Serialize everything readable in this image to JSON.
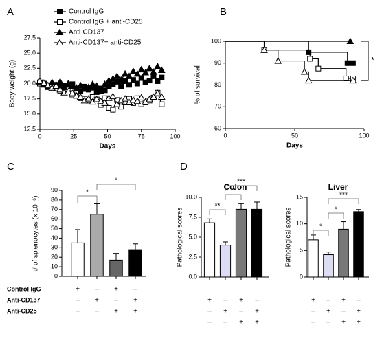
{
  "chart_data": [
    {
      "type": "line",
      "panel": "A",
      "xlabel": "Days",
      "ylabel": "Body weight (g)",
      "xlim": [
        0,
        100
      ],
      "xticks": [
        0,
        25,
        50,
        75,
        100
      ],
      "ylim": [
        12.5,
        27.5
      ],
      "yticks": [
        12.5,
        {
          "value": 15,
          "label": "15.0"
        },
        17.5,
        {
          "value": 20,
          "label": "20.0"
        },
        22.5,
        {
          "value": 25,
          "label": "25.0"
        },
        27.5
      ],
      "x": [
        0,
        3,
        6,
        9,
        12,
        15,
        18,
        21,
        24,
        27,
        30,
        33,
        36,
        39,
        42,
        45,
        48,
        51,
        54,
        57,
        60,
        63,
        66,
        69,
        72,
        75,
        78,
        81,
        84,
        87,
        90
      ],
      "series": [
        {
          "name": "Control IgG",
          "color": "#000000",
          "marker": "square",
          "filled": true,
          "values": [
            20.2,
            20,
            19.6,
            19.3,
            19.8,
            19.5,
            19.7,
            19.4,
            19.9,
            19.2,
            18.8,
            19.5,
            19,
            19.3,
            18.6,
            19.2,
            18.9,
            19.6,
            19.9,
            20.3,
            19.6,
            20.4,
            19.8,
            20.6,
            20,
            20.9,
            20.2,
            20.5,
            21.2,
            20.4,
            21
          ]
        },
        {
          "name": "Control IgG + anti-CD25",
          "color": "#000000",
          "marker": "square",
          "filled": false,
          "values": [
            20,
            19.8,
            19.4,
            19.6,
            19.2,
            18.8,
            18.6,
            19,
            18.2,
            18,
            17.6,
            17.5,
            17.2,
            17.8,
            17.4,
            16.5,
            17.6,
            16,
            15.7,
            17.3,
            16.2,
            16.9,
            17.5,
            16.8,
            17.6,
            16.6,
            16.9,
            17.2,
            17.7,
            18.5,
            16.6
          ]
        },
        {
          "name": "Anti-CD137",
          "color": "#000000",
          "marker": "triangle",
          "filled": true,
          "values": [
            20.3,
            19.9,
            19.5,
            20.2,
            19.8,
            20.3,
            19.4,
            20,
            19.6,
            19.3,
            19.7,
            19.1,
            19.4,
            19.9,
            19.6,
            18.8,
            19.9,
            20.5,
            20.8,
            21.2,
            20.6,
            21.6,
            21.2,
            22,
            21.6,
            22.3,
            21.8,
            22.5,
            21.9,
            22.8,
            22.2
          ]
        },
        {
          "name": "Anti-CD137+ anti-CD25",
          "color": "#000000",
          "marker": "triangle",
          "filled": false,
          "values": [
            20.4,
            20.1,
            19.7,
            19.3,
            19.6,
            19,
            18.5,
            18.7,
            18.4,
            18,
            17.8,
            17.2,
            17.5,
            17,
            17.4,
            17.1,
            16.8,
            17.6,
            17.9,
            16.6,
            17.2,
            17.5,
            16.9,
            17.3,
            17.1,
            17.7,
            17,
            17.4,
            17.8,
            18.4,
            17.8
          ]
        }
      ]
    },
    {
      "type": "step",
      "panel": "B",
      "xlabel": "Days",
      "ylabel": "% of survival",
      "xlim": [
        0,
        100
      ],
      "xticks": [
        0,
        50,
        100
      ],
      "ylim": [
        60,
        100
      ],
      "yticks": [
        60,
        70,
        80,
        90,
        100
      ],
      "annotation": "*",
      "series": [
        {
          "color": "#000000",
          "marker": "triangle",
          "filled": true,
          "x": [
            0,
            90
          ],
          "values": [
            100,
            100
          ]
        },
        {
          "color": "#000000",
          "marker": "square",
          "filled": true,
          "x": [
            0,
            60,
            88,
            92
          ],
          "values": [
            100,
            95,
            90,
            90
          ]
        },
        {
          "color": "#000000",
          "marker": "square",
          "filled": false,
          "x": [
            0,
            28,
            61,
            67,
            87,
            92
          ],
          "values": [
            100,
            96,
            92,
            87.5,
            83,
            83
          ]
        },
        {
          "color": "#000000",
          "marker": "triangle",
          "filled": false,
          "x": [
            0,
            28,
            38,
            57,
            60,
            92
          ],
          "values": [
            100,
            96,
            91,
            86,
            82,
            82
          ]
        }
      ]
    },
    {
      "type": "bar",
      "panel": "C",
      "ylabel": "# of splenocytes (x 10⁻⁶)",
      "ylim": [
        0,
        90
      ],
      "yticks": [
        0,
        10,
        20,
        30,
        40,
        50,
        60,
        70,
        80,
        90
      ],
      "values": [
        35,
        65,
        17,
        28
      ],
      "errors": [
        14,
        11,
        7,
        6
      ],
      "colors": [
        "#ffffff",
        "#aaaaaa",
        "#666666",
        "#000000"
      ],
      "annotations": [
        {
          "text": "*",
          "from": 0,
          "to": 1
        },
        {
          "text": "*",
          "from": 1,
          "to": 3
        }
      ],
      "treatments": [
        {
          "label": "Control IgG",
          "signs": [
            "+",
            "–",
            "+",
            "–"
          ]
        },
        {
          "label": "Anti-CD137",
          "signs": [
            "–",
            "+",
            "–",
            "+"
          ]
        },
        {
          "label": "Anti-CD25",
          "signs": [
            "–",
            "–",
            "+",
            "+"
          ]
        }
      ]
    },
    {
      "type": "bar",
      "panel": "D",
      "title": "Colon",
      "ylabel": "Pathological scores",
      "ylim": [
        0,
        10
      ],
      "yticks": [
        {
          "value": 0,
          "label": "0.0"
        },
        2.5,
        {
          "value": 5,
          "label": "5.0"
        },
        7.5,
        {
          "value": 10,
          "label": "10.0"
        }
      ],
      "values": [
        6.8,
        4.0,
        8.5,
        8.5
      ],
      "errors": [
        0.5,
        0.4,
        0.7,
        0.9
      ],
      "colors": [
        "#ffffff",
        "#dcdcf2",
        "#777777",
        "#000000"
      ],
      "annotations": [
        {
          "text": "**",
          "from": 0,
          "to": 1
        },
        {
          "text": "**",
          "from": 1,
          "to": 2
        },
        {
          "text": "***",
          "from": 1,
          "to": 3
        }
      ],
      "treatments": [
        {
          "signs": [
            "+",
            "–",
            "+",
            "–"
          ]
        },
        {
          "signs": [
            "–",
            "+",
            "–",
            "+"
          ]
        },
        {
          "signs": [
            "–",
            "–",
            "+",
            "+"
          ]
        }
      ]
    },
    {
      "type": "bar",
      "title": "Liver",
      "ylabel": "Pathological scores",
      "ylim": [
        0,
        15
      ],
      "yticks": [
        0,
        5,
        10,
        15
      ],
      "values": [
        7.0,
        4.2,
        9.0,
        12.3
      ],
      "errors": [
        0.9,
        0.5,
        1.4,
        0.4
      ],
      "colors": [
        "#ffffff",
        "#dcdcf2",
        "#777777",
        "#000000"
      ],
      "annotations": [
        {
          "text": "*",
          "from": 0,
          "to": 1
        },
        {
          "text": "*",
          "from": 1,
          "to": 2
        },
        {
          "text": "***",
          "from": 1,
          "to": 3
        }
      ],
      "treatments": [
        {
          "signs": [
            "+",
            "–",
            "+",
            "–"
          ]
        },
        {
          "signs": [
            "–",
            "+",
            "–",
            "+"
          ]
        },
        {
          "signs": [
            "–",
            "–",
            "+",
            "+"
          ]
        }
      ]
    }
  ]
}
